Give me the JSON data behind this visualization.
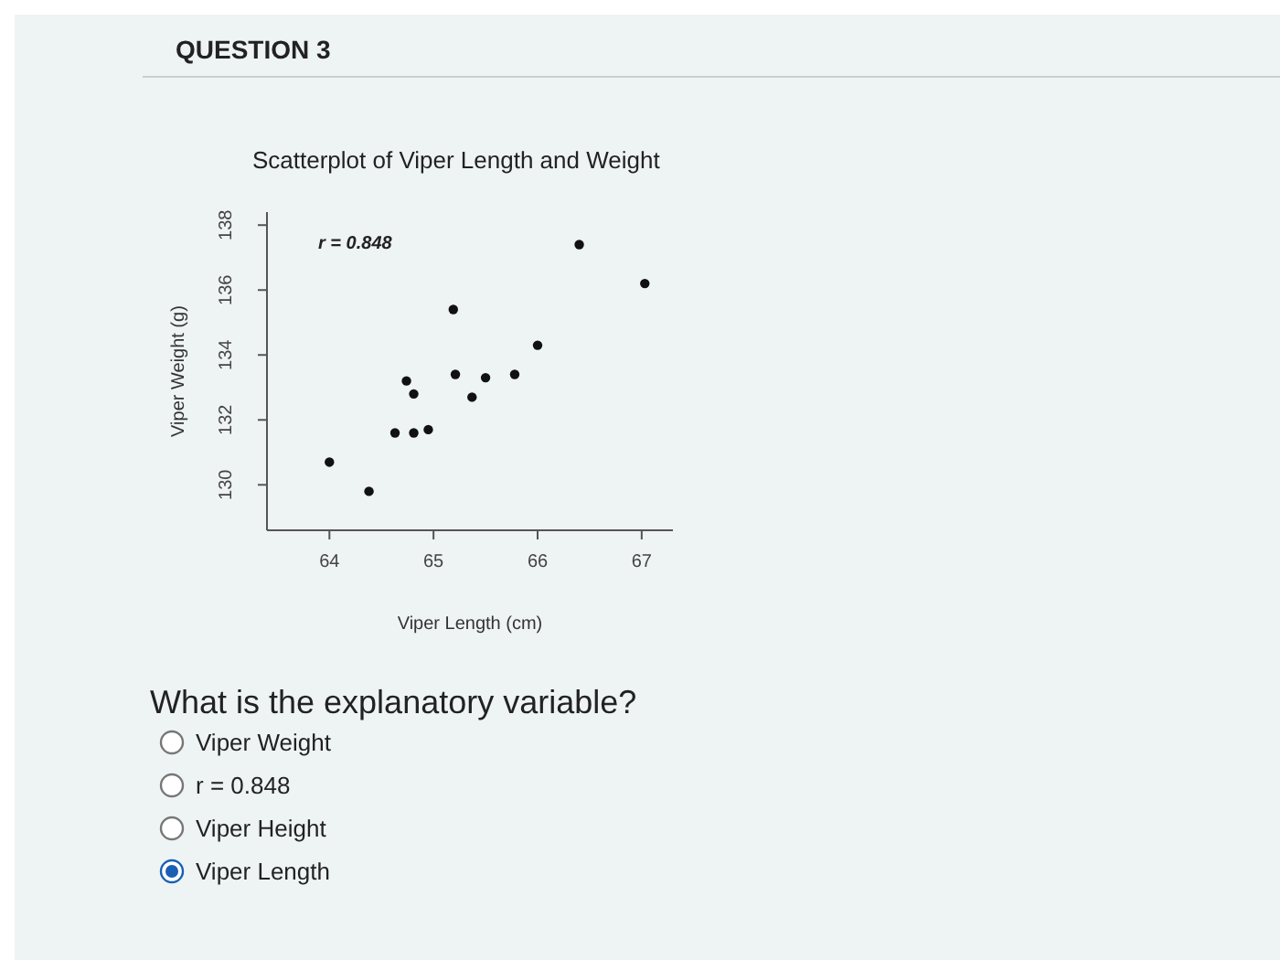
{
  "chart_data": {
    "type": "scatter",
    "title": "Scatterplot of Viper Length and Weight",
    "xlabel": "Viper Length (cm)",
    "ylabel": "Viper Weight (g)",
    "x": [
      64.0,
      64.38,
      64.63,
      64.74,
      64.81,
      64.81,
      64.95,
      65.19,
      65.21,
      65.37,
      65.5,
      65.78,
      66.0,
      66.4,
      67.03
    ],
    "values": [
      130.7,
      129.8,
      131.6,
      133.2,
      132.8,
      131.6,
      131.7,
      135.4,
      133.4,
      132.7,
      133.3,
      133.4,
      134.3,
      137.4,
      136.2
    ],
    "color": "#111111",
    "marker": "circle",
    "xlim": [
      63.4,
      67.3
    ],
    "ylim": [
      128.6,
      138.4
    ],
    "xticks": [
      64,
      65,
      66,
      67
    ],
    "yticks": [
      130,
      132,
      134,
      136,
      138
    ],
    "annotations": [
      "QUESTION 3",
      "r = 0.848",
      "What is the explanatory variable?",
      "Viper Weight",
      "r = 0.848",
      "Viper Height",
      "Viper Length"
    ]
  }
}
